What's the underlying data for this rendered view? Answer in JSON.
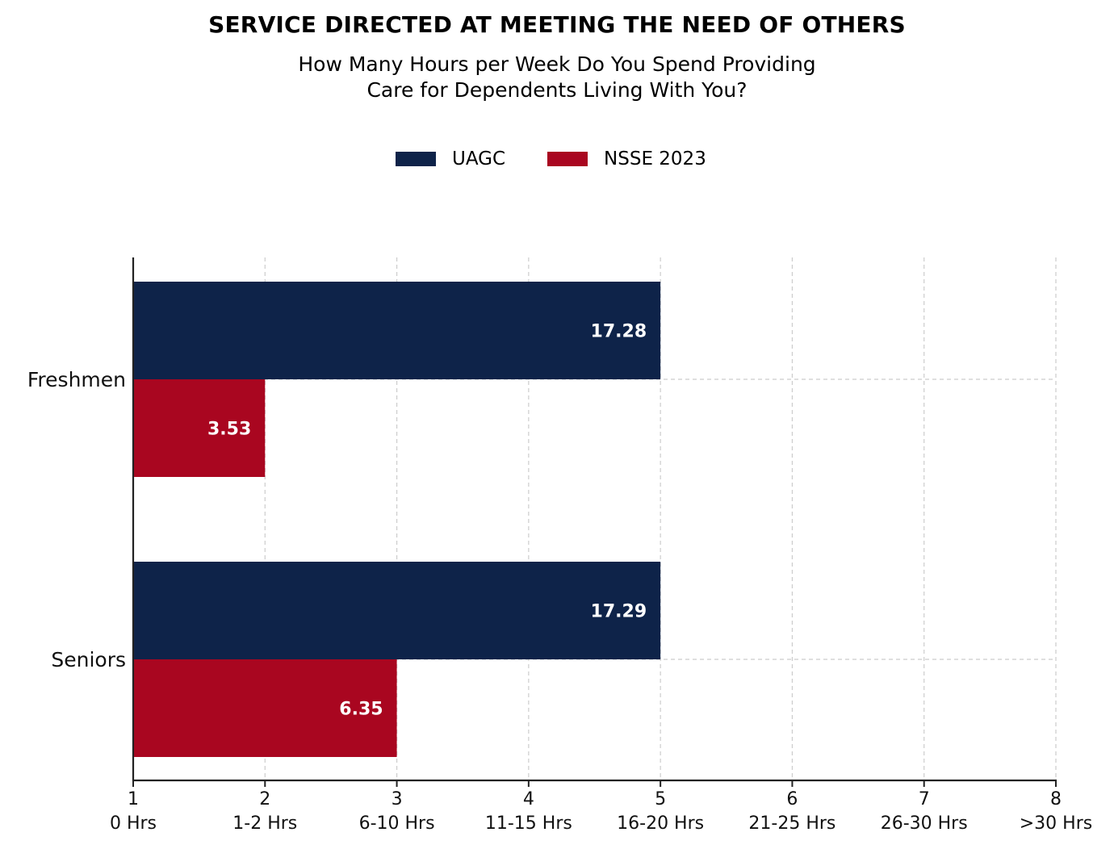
{
  "title": "SERVICE DIRECTED AT MEETING THE NEED OF OTHERS",
  "subtitle_lines": [
    "How Many Hours per Week Do You Spend Providing",
    "Care for Dependents Living With You?"
  ],
  "colors": {
    "UAGC": "#0e2349",
    "NSSE 2023": "#a90620",
    "grid": "#cccccc",
    "axis": "#222222"
  },
  "chart_data": {
    "type": "bar",
    "orientation": "horizontal",
    "title": "SERVICE DIRECTED AT MEETING THE NEED OF OTHERS",
    "subtitle": "How Many Hours per Week Do You Spend Providing Care for Dependents Living With You?",
    "categories": [
      "Freshmen",
      "Seniors"
    ],
    "series": [
      {
        "name": "UAGC",
        "values": [
          5,
          5
        ],
        "labels": [
          "17.28",
          "17.29"
        ]
      },
      {
        "name": "NSSE 2023",
        "values": [
          2,
          3
        ],
        "labels": [
          "3.53",
          "6.35"
        ]
      }
    ],
    "xlim": [
      1,
      8
    ],
    "xticks": [
      1,
      2,
      3,
      4,
      5,
      6,
      7,
      8
    ],
    "xtick_labels": [
      "0 Hrs",
      "1-2 Hrs",
      "6-10 Hrs",
      "11-15 Hrs",
      "16-20 Hrs",
      "21-25 Hrs",
      "26-30 Hrs",
      ">30 Hrs"
    ],
    "grid": true,
    "legend": "top-center"
  }
}
